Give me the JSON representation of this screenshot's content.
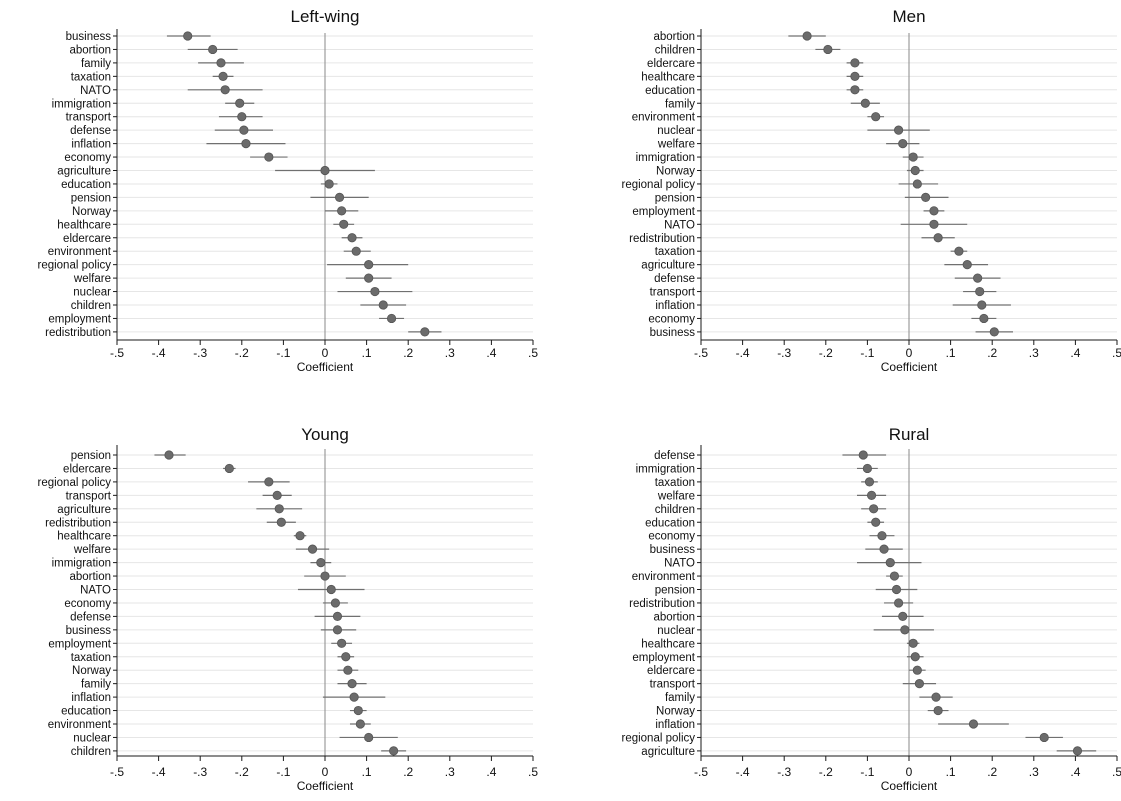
{
  "chart_data": [
    {
      "type": "scatter",
      "title": "Left-wing",
      "xlabel": "Coefficient",
      "xlim": [
        -0.5,
        0.5
      ],
      "x_ticks": [
        -0.5,
        -0.4,
        -0.3,
        -0.2,
        -0.1,
        0,
        0.1,
        0.2,
        0.3,
        0.4,
        0.5
      ],
      "x_tick_labels": [
        "-.5",
        "-.4",
        "-.3",
        "-.2",
        "-.1",
        "0",
        ".1",
        ".2",
        ".3",
        ".4",
        ".5"
      ],
      "grid": "horizontal",
      "reference_line": 0,
      "points": [
        {
          "label": "business",
          "coef": -0.33,
          "low": -0.38,
          "high": -0.275
        },
        {
          "label": "abortion",
          "coef": -0.27,
          "low": -0.33,
          "high": -0.21
        },
        {
          "label": "family",
          "coef": -0.25,
          "low": -0.305,
          "high": -0.195
        },
        {
          "label": "taxation",
          "coef": -0.245,
          "low": -0.27,
          "high": -0.22
        },
        {
          "label": "NATO",
          "coef": -0.24,
          "low": -0.33,
          "high": -0.15
        },
        {
          "label": "immigration",
          "coef": -0.205,
          "low": -0.24,
          "high": -0.17
        },
        {
          "label": "transport",
          "coef": -0.2,
          "low": -0.255,
          "high": -0.15
        },
        {
          "label": "defense",
          "coef": -0.195,
          "low": -0.265,
          "high": -0.125
        },
        {
          "label": "inflation",
          "coef": -0.19,
          "low": -0.285,
          "high": -0.095
        },
        {
          "label": "economy",
          "coef": -0.135,
          "low": -0.18,
          "high": -0.09
        },
        {
          "label": "agriculture",
          "coef": 0.0,
          "low": -0.12,
          "high": 0.12
        },
        {
          "label": "education",
          "coef": 0.01,
          "low": -0.01,
          "high": 0.03
        },
        {
          "label": "pension",
          "coef": 0.035,
          "low": -0.035,
          "high": 0.105
        },
        {
          "label": "Norway",
          "coef": 0.04,
          "low": 0.0,
          "high": 0.08
        },
        {
          "label": "healthcare",
          "coef": 0.045,
          "low": 0.02,
          "high": 0.07
        },
        {
          "label": "eldercare",
          "coef": 0.065,
          "low": 0.04,
          "high": 0.09
        },
        {
          "label": "environment",
          "coef": 0.075,
          "low": 0.045,
          "high": 0.11
        },
        {
          "label": "regional policy",
          "coef": 0.105,
          "low": 0.005,
          "high": 0.2
        },
        {
          "label": "welfare",
          "coef": 0.105,
          "low": 0.05,
          "high": 0.16
        },
        {
          "label": "nuclear",
          "coef": 0.12,
          "low": 0.03,
          "high": 0.21
        },
        {
          "label": "children",
          "coef": 0.14,
          "low": 0.085,
          "high": 0.195
        },
        {
          "label": "employment",
          "coef": 0.16,
          "low": 0.13,
          "high": 0.19
        },
        {
          "label": "redistribution",
          "coef": 0.24,
          "low": 0.2,
          "high": 0.28
        }
      ]
    },
    {
      "type": "scatter",
      "title": "Men",
      "xlabel": "Coefficient",
      "xlim": [
        -0.5,
        0.5
      ],
      "x_ticks": [
        -0.5,
        -0.4,
        -0.3,
        -0.2,
        -0.1,
        0,
        0.1,
        0.2,
        0.3,
        0.4,
        0.5
      ],
      "x_tick_labels": [
        "-.5",
        "-.4",
        "-.3",
        "-.2",
        "-.1",
        "0",
        ".1",
        ".2",
        ".3",
        ".4",
        ".5"
      ],
      "grid": "horizontal",
      "reference_line": 0,
      "points": [
        {
          "label": "abortion",
          "coef": -0.245,
          "low": -0.29,
          "high": -0.2
        },
        {
          "label": "children",
          "coef": -0.195,
          "low": -0.225,
          "high": -0.165
        },
        {
          "label": "eldercare",
          "coef": -0.13,
          "low": -0.15,
          "high": -0.11
        },
        {
          "label": "healthcare",
          "coef": -0.13,
          "low": -0.15,
          "high": -0.11
        },
        {
          "label": "education",
          "coef": -0.13,
          "low": -0.15,
          "high": -0.11
        },
        {
          "label": "family",
          "coef": -0.105,
          "low": -0.14,
          "high": -0.07
        },
        {
          "label": "environment",
          "coef": -0.08,
          "low": -0.1,
          "high": -0.06
        },
        {
          "label": "nuclear",
          "coef": -0.025,
          "low": -0.1,
          "high": 0.05
        },
        {
          "label": "welfare",
          "coef": -0.015,
          "low": -0.055,
          "high": 0.025
        },
        {
          "label": "immigration",
          "coef": 0.01,
          "low": -0.015,
          "high": 0.035
        },
        {
          "label": "Norway",
          "coef": 0.015,
          "low": -0.005,
          "high": 0.035
        },
        {
          "label": "regional policy",
          "coef": 0.02,
          "low": -0.025,
          "high": 0.07
        },
        {
          "label": "pension",
          "coef": 0.04,
          "low": -0.01,
          "high": 0.095
        },
        {
          "label": "employment",
          "coef": 0.06,
          "low": 0.035,
          "high": 0.085
        },
        {
          "label": "NATO",
          "coef": 0.06,
          "low": -0.02,
          "high": 0.14
        },
        {
          "label": "redistribution",
          "coef": 0.07,
          "low": 0.03,
          "high": 0.11
        },
        {
          "label": "taxation",
          "coef": 0.12,
          "low": 0.1,
          "high": 0.14
        },
        {
          "label": "agriculture",
          "coef": 0.14,
          "low": 0.085,
          "high": 0.19
        },
        {
          "label": "defense",
          "coef": 0.165,
          "low": 0.11,
          "high": 0.22
        },
        {
          "label": "transport",
          "coef": 0.17,
          "low": 0.13,
          "high": 0.21
        },
        {
          "label": "inflation",
          "coef": 0.175,
          "low": 0.105,
          "high": 0.245
        },
        {
          "label": "economy",
          "coef": 0.18,
          "low": 0.15,
          "high": 0.21
        },
        {
          "label": "business",
          "coef": 0.205,
          "low": 0.16,
          "high": 0.25
        }
      ]
    },
    {
      "type": "scatter",
      "title": "Young",
      "xlabel": "Coefficient",
      "xlim": [
        -0.5,
        0.5
      ],
      "x_ticks": [
        -0.5,
        -0.4,
        -0.3,
        -0.2,
        -0.1,
        0,
        0.1,
        0.2,
        0.3,
        0.4,
        0.5
      ],
      "x_tick_labels": [
        "-.5",
        "-.4",
        "-.3",
        "-.2",
        "-.1",
        "0",
        ".1",
        ".2",
        ".3",
        ".4",
        ".5"
      ],
      "grid": "horizontal",
      "reference_line": 0,
      "points": [
        {
          "label": "pension",
          "coef": -0.375,
          "low": -0.41,
          "high": -0.335
        },
        {
          "label": "eldercare",
          "coef": -0.23,
          "low": -0.245,
          "high": -0.215
        },
        {
          "label": "regional policy",
          "coef": -0.135,
          "low": -0.185,
          "high": -0.085
        },
        {
          "label": "transport",
          "coef": -0.115,
          "low": -0.15,
          "high": -0.08
        },
        {
          "label": "agriculture",
          "coef": -0.11,
          "low": -0.165,
          "high": -0.055
        },
        {
          "label": "redistribution",
          "coef": -0.105,
          "low": -0.14,
          "high": -0.07
        },
        {
          "label": "healthcare",
          "coef": -0.06,
          "low": -0.075,
          "high": -0.045
        },
        {
          "label": "welfare",
          "coef": -0.03,
          "low": -0.07,
          "high": 0.01
        },
        {
          "label": "immigration",
          "coef": -0.01,
          "low": -0.035,
          "high": 0.015
        },
        {
          "label": "abortion",
          "coef": 0.0,
          "low": -0.05,
          "high": 0.05
        },
        {
          "label": "NATO",
          "coef": 0.015,
          "low": -0.065,
          "high": 0.095
        },
        {
          "label": "economy",
          "coef": 0.025,
          "low": -0.005,
          "high": 0.055
        },
        {
          "label": "defense",
          "coef": 0.03,
          "low": -0.025,
          "high": 0.085
        },
        {
          "label": "business",
          "coef": 0.03,
          "low": -0.01,
          "high": 0.075
        },
        {
          "label": "employment",
          "coef": 0.04,
          "low": 0.015,
          "high": 0.065
        },
        {
          "label": "taxation",
          "coef": 0.05,
          "low": 0.03,
          "high": 0.07
        },
        {
          "label": "Norway",
          "coef": 0.055,
          "low": 0.03,
          "high": 0.08
        },
        {
          "label": "family",
          "coef": 0.065,
          "low": 0.03,
          "high": 0.1
        },
        {
          "label": "inflation",
          "coef": 0.07,
          "low": -0.005,
          "high": 0.145
        },
        {
          "label": "education",
          "coef": 0.08,
          "low": 0.06,
          "high": 0.1
        },
        {
          "label": "environment",
          "coef": 0.085,
          "low": 0.06,
          "high": 0.11
        },
        {
          "label": "nuclear",
          "coef": 0.105,
          "low": 0.035,
          "high": 0.175
        },
        {
          "label": "children",
          "coef": 0.165,
          "low": 0.135,
          "high": 0.195
        }
      ]
    },
    {
      "type": "scatter",
      "title": "Rural",
      "xlabel": "Coefficient",
      "xlim": [
        -0.5,
        0.5
      ],
      "x_ticks": [
        -0.5,
        -0.4,
        -0.3,
        -0.2,
        -0.1,
        0,
        0.1,
        0.2,
        0.3,
        0.4,
        0.5
      ],
      "x_tick_labels": [
        "-.5",
        "-.4",
        "-.3",
        "-.2",
        "-.1",
        "0",
        ".1",
        ".2",
        ".3",
        ".4",
        ".5"
      ],
      "grid": "horizontal",
      "reference_line": 0,
      "points": [
        {
          "label": "defense",
          "coef": -0.11,
          "low": -0.16,
          "high": -0.055
        },
        {
          "label": "immigration",
          "coef": -0.1,
          "low": -0.125,
          "high": -0.075
        },
        {
          "label": "taxation",
          "coef": -0.095,
          "low": -0.115,
          "high": -0.075
        },
        {
          "label": "welfare",
          "coef": -0.09,
          "low": -0.125,
          "high": -0.055
        },
        {
          "label": "children",
          "coef": -0.085,
          "low": -0.115,
          "high": -0.055
        },
        {
          "label": "education",
          "coef": -0.08,
          "low": -0.1,
          "high": -0.06
        },
        {
          "label": "economy",
          "coef": -0.065,
          "low": -0.095,
          "high": -0.035
        },
        {
          "label": "business",
          "coef": -0.06,
          "low": -0.105,
          "high": -0.015
        },
        {
          "label": "NATO",
          "coef": -0.045,
          "low": -0.125,
          "high": 0.03
        },
        {
          "label": "environment",
          "coef": -0.035,
          "low": -0.055,
          "high": -0.015
        },
        {
          "label": "pension",
          "coef": -0.03,
          "low": -0.08,
          "high": 0.02
        },
        {
          "label": "redistribution",
          "coef": -0.025,
          "low": -0.06,
          "high": 0.01
        },
        {
          "label": "abortion",
          "coef": -0.015,
          "low": -0.065,
          "high": 0.035
        },
        {
          "label": "nuclear",
          "coef": -0.01,
          "low": -0.085,
          "high": 0.06
        },
        {
          "label": "healthcare",
          "coef": 0.01,
          "low": -0.005,
          "high": 0.025
        },
        {
          "label": "employment",
          "coef": 0.015,
          "low": -0.005,
          "high": 0.035
        },
        {
          "label": "eldercare",
          "coef": 0.02,
          "low": 0.0,
          "high": 0.04
        },
        {
          "label": "transport",
          "coef": 0.025,
          "low": -0.015,
          "high": 0.065
        },
        {
          "label": "family",
          "coef": 0.065,
          "low": 0.025,
          "high": 0.105
        },
        {
          "label": "Norway",
          "coef": 0.07,
          "low": 0.045,
          "high": 0.095
        },
        {
          "label": "inflation",
          "coef": 0.155,
          "low": 0.07,
          "high": 0.24
        },
        {
          "label": "regional policy",
          "coef": 0.325,
          "low": 0.28,
          "high": 0.37
        },
        {
          "label": "agriculture",
          "coef": 0.405,
          "low": 0.355,
          "high": 0.45
        }
      ]
    }
  ],
  "colors": {
    "marker": "#6b6b6b",
    "marker_stroke": "#555555",
    "ci_line": "#707070",
    "gridline": "#e6e6e6",
    "reference_line": "#8a8a8a",
    "axis": "#1a1a1a",
    "text": "#111111"
  }
}
